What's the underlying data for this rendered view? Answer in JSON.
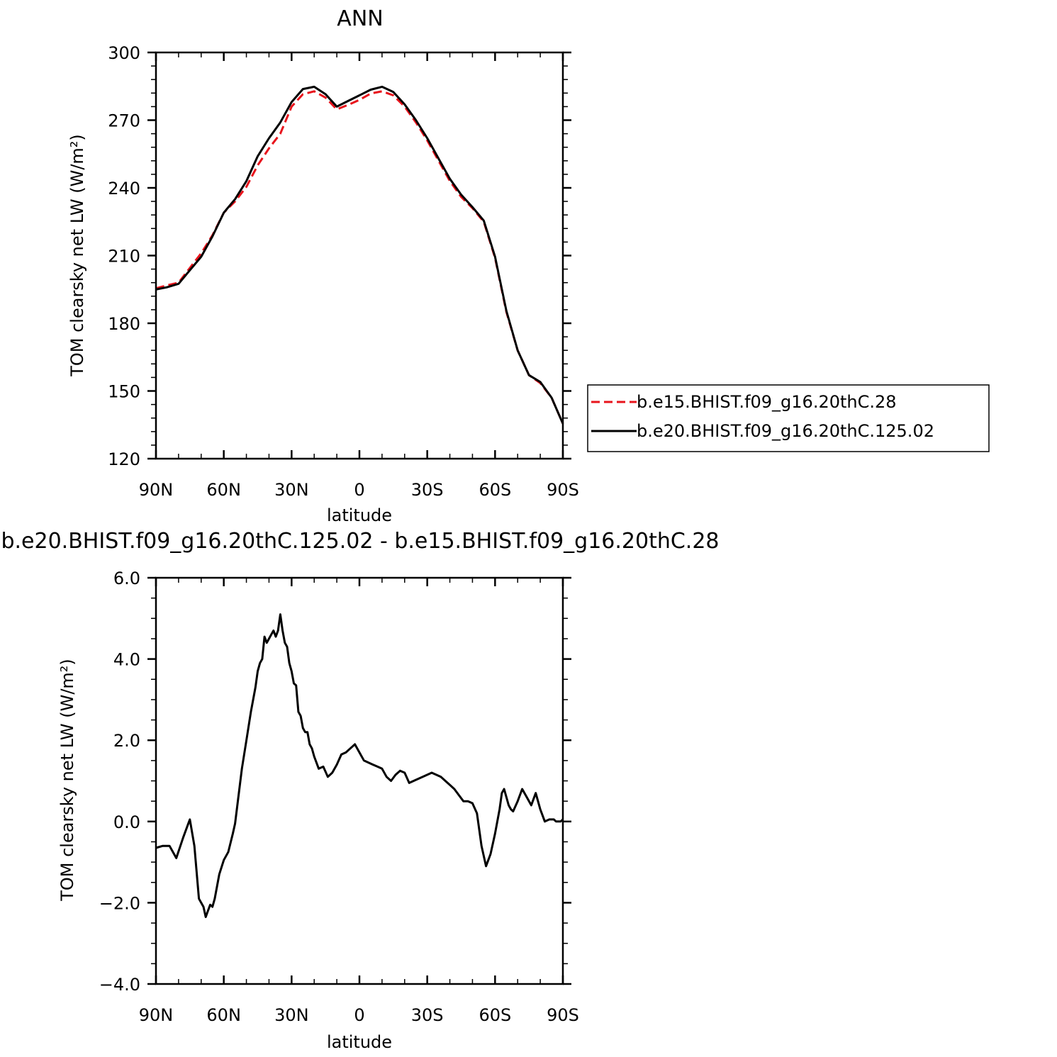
{
  "chart_data": [
    {
      "type": "line",
      "title": "ANN",
      "xlabel": "latitude",
      "ylabel": "TOM clearsky net LW (W/m²)",
      "xlim": [
        90,
        -90
      ],
      "ylim": [
        120,
        300
      ],
      "x_ticks": [
        {
          "value": 90,
          "label": "90N"
        },
        {
          "value": 60,
          "label": "60N"
        },
        {
          "value": 30,
          "label": "30N"
        },
        {
          "value": 0,
          "label": "0"
        },
        {
          "value": -30,
          "label": "30S"
        },
        {
          "value": -60,
          "label": "60S"
        },
        {
          "value": -90,
          "label": "90S"
        }
      ],
      "y_ticks": [
        {
          "value": 120,
          "label": "120"
        },
        {
          "value": 150,
          "label": "150"
        },
        {
          "value": 180,
          "label": "180"
        },
        {
          "value": 210,
          "label": "210"
        },
        {
          "value": 240,
          "label": "240"
        },
        {
          "value": 270,
          "label": "270"
        },
        {
          "value": 300,
          "label": "300"
        }
      ],
      "x": [
        90,
        85,
        80,
        75,
        70,
        65,
        60,
        55,
        50,
        45,
        40,
        35,
        30,
        25,
        20,
        15,
        10,
        5,
        0,
        -5,
        -10,
        -15,
        -20,
        -25,
        -30,
        -35,
        -40,
        -45,
        -50,
        -55,
        -60,
        -65,
        -70,
        -75,
        -80,
        -85,
        -90
      ],
      "series": [
        {
          "name": "b.e15.BHIST.f09_g16.20thC.28",
          "color": "#e8141c",
          "dash": "dashed",
          "values": [
            195.5,
            196.8,
            198.0,
            204.5,
            211.0,
            219.0,
            229.0,
            234.0,
            240.5,
            250.0,
            257.5,
            264.0,
            276.0,
            281.5,
            282.8,
            280.0,
            274.8,
            276.8,
            279.0,
            281.8,
            282.8,
            281.0,
            276.0,
            269.0,
            261.0,
            252.0,
            243.0,
            236.0,
            231.0,
            225.0,
            209.0,
            185.0,
            168.0,
            157.0,
            153.5,
            147.0,
            135.5
          ]
        },
        {
          "name": "b.e20.BHIST.f09_g16.20thC.125.02",
          "color": "#000000",
          "dash": "solid",
          "values": [
            195.0,
            196.0,
            197.5,
            203.5,
            209.5,
            218.5,
            229.0,
            235.0,
            243.0,
            254.0,
            262.0,
            269.0,
            278.0,
            283.8,
            284.8,
            281.5,
            276.0,
            278.5,
            281.0,
            283.5,
            284.8,
            282.5,
            277.0,
            270.0,
            262.0,
            253.0,
            244.0,
            237.0,
            231.5,
            225.5,
            209.5,
            185.5,
            168.0,
            157.0,
            154.0,
            147.0,
            135.5
          ]
        }
      ],
      "legend": "right"
    },
    {
      "type": "line",
      "title": "b.e20.BHIST.f09_g16.20thC.125.02 - b.e15.BHIST.f09_g16.20thC.28",
      "xlabel": "latitude",
      "ylabel": "TOM clearsky net LW (W/m²)",
      "xlim": [
        90,
        -90
      ],
      "ylim": [
        -4,
        6
      ],
      "x_ticks": [
        {
          "value": 90,
          "label": "90N"
        },
        {
          "value": 60,
          "label": "60N"
        },
        {
          "value": 30,
          "label": "30N"
        },
        {
          "value": 0,
          "label": "0"
        },
        {
          "value": -30,
          "label": "30S"
        },
        {
          "value": -60,
          "label": "60S"
        },
        {
          "value": -90,
          "label": "90S"
        }
      ],
      "y_ticks": [
        {
          "value": -4,
          "label": "−4.0"
        },
        {
          "value": -2,
          "label": "−2.0"
        },
        {
          "value": 0,
          "label": "0.0"
        },
        {
          "value": 2,
          "label": "2.0"
        },
        {
          "value": 4,
          "label": "4.0"
        },
        {
          "value": 6,
          "label": "6.0"
        }
      ],
      "x": [
        90,
        87,
        84,
        81,
        78,
        76,
        75,
        73,
        71,
        69,
        68,
        67,
        66,
        65,
        64,
        62,
        60,
        58,
        56,
        55,
        54,
        52,
        50,
        48,
        46,
        45,
        44,
        43,
        42,
        41,
        40,
        39,
        38,
        37,
        36,
        35,
        34,
        33,
        32,
        31,
        30,
        29,
        28,
        27,
        26,
        25,
        24,
        23,
        22,
        21,
        20,
        18,
        16,
        14,
        12,
        10,
        8,
        6,
        4,
        3,
        2,
        0,
        -2,
        -4,
        -6,
        -8,
        -10,
        -12,
        -14,
        -16,
        -18,
        -20,
        -22,
        -24,
        -26,
        -28,
        -30,
        -32,
        -34,
        -36,
        -38,
        -40,
        -42,
        -44,
        -46,
        -48,
        -50,
        -52,
        -54,
        -56,
        -58,
        -60,
        -62,
        -63,
        -64,
        -65,
        -66,
        -67,
        -68,
        -70,
        -72,
        -74,
        -76,
        -78,
        -80,
        -82,
        -84,
        -86,
        -87,
        -88,
        -89,
        -90
      ],
      "series": [
        {
          "name": "",
          "color": "#000000",
          "dash": "solid",
          "values": [
            -0.65,
            -0.6,
            -0.6,
            -0.9,
            -0.4,
            -0.1,
            0.05,
            -0.6,
            -1.9,
            -2.1,
            -2.35,
            -2.2,
            -2.05,
            -2.1,
            -1.9,
            -1.3,
            -0.95,
            -0.75,
            -0.3,
            -0.05,
            0.4,
            1.3,
            2.0,
            2.7,
            3.3,
            3.7,
            3.9,
            4.0,
            4.55,
            4.4,
            4.5,
            4.6,
            4.7,
            4.55,
            4.7,
            5.1,
            4.7,
            4.4,
            4.3,
            3.9,
            3.7,
            3.4,
            3.35,
            2.7,
            2.6,
            2.3,
            2.2,
            2.2,
            1.9,
            1.8,
            1.6,
            1.3,
            1.35,
            1.1,
            1.2,
            1.4,
            1.65,
            1.7,
            1.8,
            1.85,
            1.9,
            1.7,
            1.5,
            1.45,
            1.4,
            1.35,
            1.3,
            1.1,
            1.0,
            1.15,
            1.25,
            1.2,
            0.95,
            1.0,
            1.05,
            1.1,
            1.15,
            1.2,
            1.15,
            1.1,
            1.0,
            0.9,
            0.8,
            0.65,
            0.5,
            0.5,
            0.45,
            0.2,
            -0.6,
            -1.1,
            -0.8,
            -0.3,
            0.3,
            0.7,
            0.8,
            0.6,
            0.4,
            0.3,
            0.25,
            0.5,
            0.8,
            0.6,
            0.4,
            0.7,
            0.3,
            0.0,
            0.05,
            0.05,
            0.0,
            0.0,
            0.0,
            0.05
          ]
        }
      ]
    }
  ]
}
